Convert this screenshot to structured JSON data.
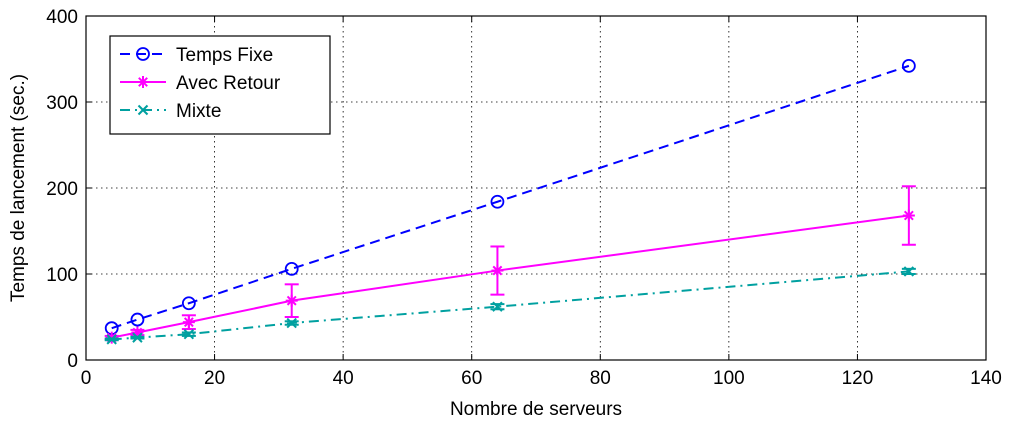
{
  "chart_data": {
    "type": "line",
    "xlabel": "Nombre de serveurs",
    "ylabel": "Temps de lancement (sec.)",
    "xlim": [
      0,
      140
    ],
    "ylim": [
      0,
      400
    ],
    "xticks": [
      0,
      20,
      40,
      60,
      80,
      100,
      120,
      140
    ],
    "yticks": [
      0,
      100,
      200,
      300,
      400
    ],
    "grid": true,
    "legend_position": "top-left",
    "series": [
      {
        "name": "Temps Fixe",
        "color": "#0000ff",
        "line_style": "dashed",
        "marker": "circle",
        "x": [
          4,
          8,
          16,
          32,
          64,
          128
        ],
        "y": [
          37,
          47,
          66,
          106,
          184,
          342
        ]
      },
      {
        "name": "Avec Retour",
        "color": "#ff00ff",
        "line_style": "solid",
        "marker": "asterisk",
        "x": [
          4,
          8,
          16,
          32,
          64,
          128
        ],
        "y": [
          26,
          32,
          44,
          69,
          104,
          168
        ],
        "error": [
          2,
          3,
          8,
          19,
          28,
          34
        ]
      },
      {
        "name": "Mixte",
        "color": "#00a0a0",
        "line_style": "dashdot",
        "marker": "x",
        "x": [
          4,
          8,
          16,
          32,
          64,
          128
        ],
        "y": [
          24,
          26,
          30,
          43,
          62,
          103
        ],
        "error": [
          1,
          1,
          2,
          2,
          3,
          3
        ]
      }
    ]
  }
}
